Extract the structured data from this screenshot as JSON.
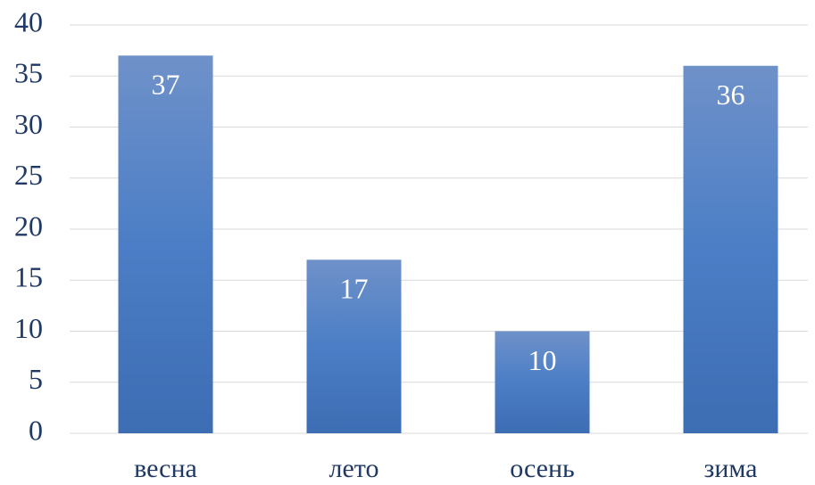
{
  "chart_data": {
    "type": "bar",
    "categories": [
      "весна",
      "лето",
      "осень",
      "зима"
    ],
    "values": [
      37,
      17,
      10,
      36
    ],
    "color": "#4a78be",
    "ylim": [
      0,
      40
    ],
    "yticks": [
      0,
      5,
      10,
      15,
      20,
      25,
      30,
      35,
      40
    ],
    "grid": true
  }
}
